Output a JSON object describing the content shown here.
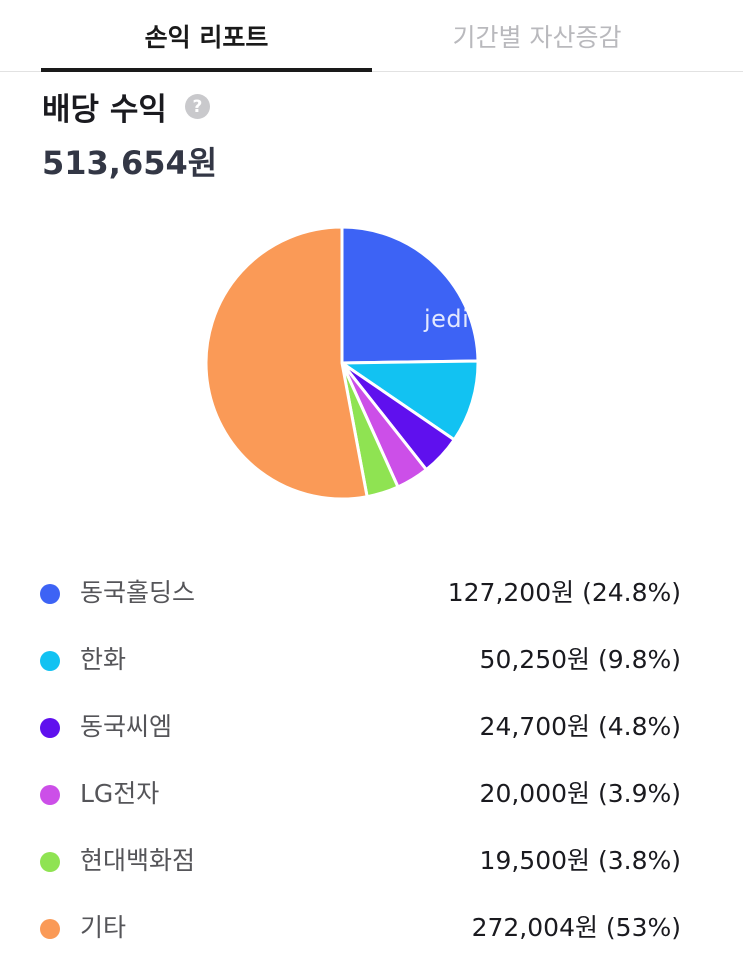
{
  "tabs": [
    {
      "label": "손익 리포트",
      "active": true
    },
    {
      "label": "기간별 자산증감",
      "active": false
    }
  ],
  "section": {
    "title": "배당 수익",
    "help_icon": "question-circle-icon",
    "total": "513,654원"
  },
  "watermark": "jedimaster",
  "chart_data": {
    "type": "pie",
    "categories": [
      "동국홀딩스",
      "한화",
      "동국씨엠",
      "LG전자",
      "현대백화점",
      "기타"
    ],
    "values": [
      127200,
      50250,
      24700,
      20000,
      19500,
      272004
    ],
    "percent_labels": [
      "24.8%",
      "9.8%",
      "4.8%",
      "3.9%",
      "3.8%",
      "53%"
    ],
    "colors": [
      "#3d63f5",
      "#12c2f2",
      "#5f10ee",
      "#cc4fe8",
      "#8fe352",
      "#fa9a57"
    ],
    "start_angle": "12 o'clock",
    "direction": "clockwise"
  },
  "legend": [
    {
      "name": "동국홀딩스",
      "value": "127,200원 (24.8%)",
      "color": "#3d63f5"
    },
    {
      "name": "한화",
      "value": "50,250원 (9.8%)",
      "color": "#12c2f2"
    },
    {
      "name": "동국씨엠",
      "value": "24,700원 (4.8%)",
      "color": "#5f10ee"
    },
    {
      "name": "LG전자",
      "value": "20,000원 (3.9%)",
      "color": "#cc4fe8"
    },
    {
      "name": "현대백화점",
      "value": "19,500원 (3.8%)",
      "color": "#8fe352"
    },
    {
      "name": "기타",
      "value": "272,004원 (53%)",
      "color": "#fa9a57"
    }
  ]
}
